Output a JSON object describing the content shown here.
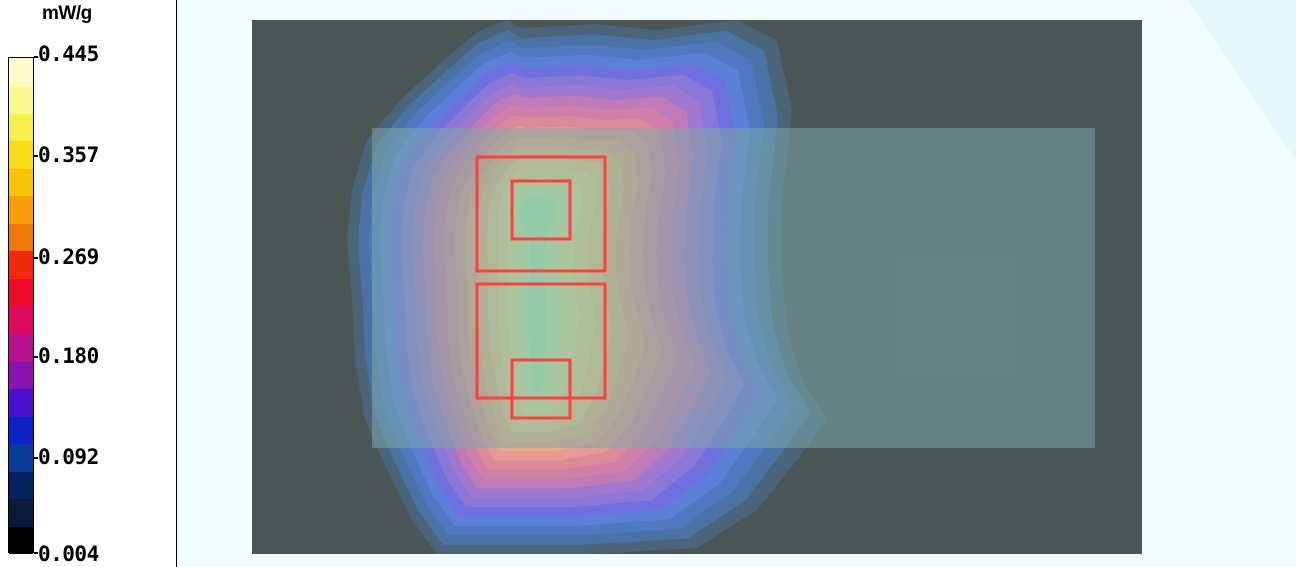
{
  "legend": {
    "unit": "mW/g",
    "ticks": [
      "0.445",
      "0.357",
      "0.269",
      "0.180",
      "0.092",
      "0.004"
    ],
    "colors": [
      "#000000",
      "#0a1a3a",
      "#06235f",
      "#0a3a9a",
      "#0b22c8",
      "#4a10d0",
      "#8a12b0",
      "#b8108c",
      "#dc0a5a",
      "#f00a2a",
      "#f02a0a",
      "#f0780a",
      "#f8a00a",
      "#f8c40a",
      "#f8dc18",
      "#f8f04a",
      "#fafa90",
      "#fcfcc8"
    ]
  },
  "sar_map": {
    "background_color": "#f1fcfd",
    "phantom_color": "#4a5656",
    "device_color": "#7ca7a7",
    "outline_color": "#ff4040",
    "contour_colors": [
      "#4b6479",
      "#4a73a5",
      "#4f78c0",
      "#5a80d8",
      "#6f6fe0",
      "#8a78d8",
      "#a078d0",
      "#c07ab8",
      "#d080a8",
      "#dc8a98",
      "#e89a90",
      "#eeaa86",
      "#f0ba82",
      "#f0cc84",
      "#eedc8a",
      "#e4ec94",
      "#ccf4a0",
      "#b0f4a8"
    ]
  }
}
